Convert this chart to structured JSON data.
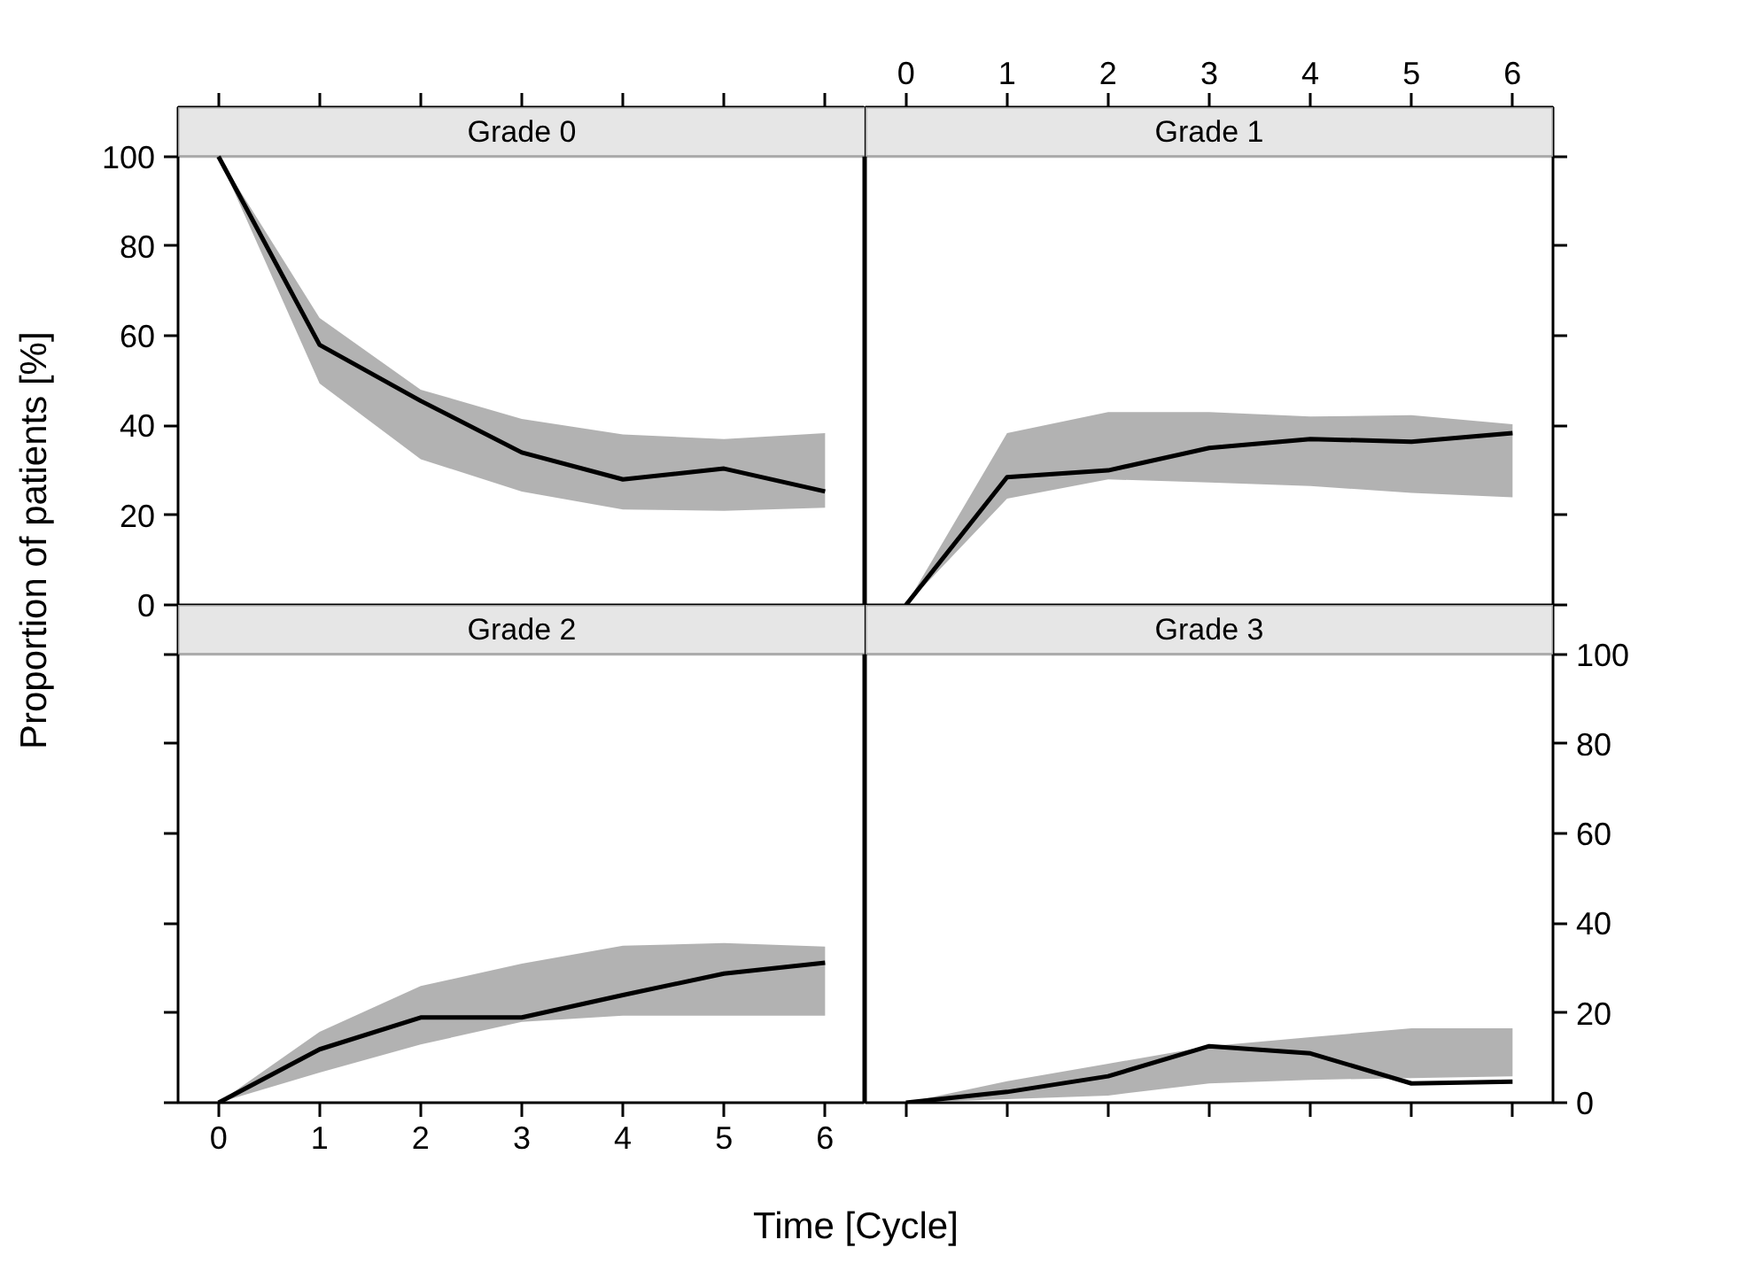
{
  "chart_data": [
    {
      "type": "line",
      "title": "Grade 0",
      "ylabel": "Proportion of patients [%]",
      "x": [
        0,
        1,
        2,
        3,
        4,
        5,
        6
      ],
      "xlim": [
        -0.4,
        6.4
      ],
      "ylim": [
        0,
        100
      ],
      "yticks": [
        0,
        20,
        40,
        60,
        80,
        100
      ],
      "tick_labels": "y",
      "series": [
        {
          "color": "#000000",
          "values": [
            100,
            58,
            45.5,
            34,
            28,
            30.4,
            25.3
          ],
          "lower": [
            100,
            49.4,
            32.5,
            25.3,
            21.3,
            21,
            21.7
          ],
          "upper": [
            100,
            64,
            48,
            41.5,
            38,
            37,
            38.3
          ]
        }
      ]
    },
    {
      "type": "line",
      "title": "Grade 1",
      "x": [
        0,
        1,
        2,
        3,
        4,
        5,
        6
      ],
      "xlim": [
        -0.4,
        6.4
      ],
      "xticks": [
        0,
        1,
        2,
        3,
        4,
        5,
        6
      ],
      "ylim": [
        0,
        100
      ],
      "yticks": [
        {
          "value": 0,
          "label": null
        },
        {
          "value": 20,
          "label": null
        },
        {
          "value": 40,
          "label": null
        },
        {
          "value": 60,
          "label": null
        },
        {
          "value": 80,
          "label": null
        },
        {
          "value": 100,
          "label": null
        }
      ],
      "tick_labels": "x",
      "series": [
        {
          "color": "#000000",
          "values": [
            0,
            28.5,
            30,
            35,
            37,
            36.4,
            38.3
          ],
          "lower": [
            0,
            23.7,
            28,
            27.3,
            26.5,
            25,
            24
          ],
          "upper": [
            0,
            38.3,
            43,
            43,
            42,
            42.3,
            40.3
          ]
        }
      ]
    },
    {
      "type": "line",
      "title": "Grade 2",
      "xlabel": "Time [Cycle]",
      "x": [
        0,
        1,
        2,
        3,
        4,
        5,
        6
      ],
      "xlim": [
        -0.4,
        6.4
      ],
      "xticks": [
        0,
        1,
        2,
        3,
        4,
        5,
        6
      ],
      "ylim": [
        0,
        100
      ],
      "yticks": [
        {
          "value": 0,
          "label": null
        },
        {
          "value": 20,
          "label": null
        },
        {
          "value": 40,
          "label": null
        },
        {
          "value": 60,
          "label": null
        },
        {
          "value": 80,
          "label": null
        },
        {
          "value": 100,
          "label": null
        }
      ],
      "tick_labels": "x",
      "series": [
        {
          "color": "#000000",
          "values": [
            0,
            11.9,
            19,
            19,
            24,
            28.8,
            31.2
          ],
          "lower": [
            0,
            6.7,
            13,
            18,
            19.4,
            19.4,
            19.4
          ],
          "upper": [
            0,
            15.8,
            26,
            31,
            35,
            35.6,
            34.8
          ]
        }
      ]
    },
    {
      "type": "line",
      "title": "Grade 3",
      "x": [
        0,
        1,
        2,
        3,
        4,
        5,
        6
      ],
      "xlim": [
        -0.4,
        6.4
      ],
      "xticks": [
        {
          "value": 0,
          "label": null
        },
        {
          "value": 1,
          "label": null
        },
        {
          "value": 2,
          "label": null
        },
        {
          "value": 3,
          "label": null
        },
        {
          "value": 4,
          "label": null
        },
        {
          "value": 5,
          "label": null
        },
        {
          "value": 6,
          "label": null
        }
      ],
      "ylim": [
        0,
        100
      ],
      "yticks": [
        0,
        20,
        40,
        60,
        80,
        100
      ],
      "tick_labels": "y",
      "series": [
        {
          "color": "#000000",
          "values": [
            0,
            2.4,
            5.9,
            12.6,
            11,
            4.3,
            4.7
          ],
          "lower": [
            0,
            0.8,
            1.6,
            4.3,
            5.1,
            5.5,
            5.9
          ],
          "upper": [
            0,
            4.8,
            8.7,
            12.6,
            14.6,
            16.6,
            16.6
          ]
        }
      ]
    }
  ]
}
